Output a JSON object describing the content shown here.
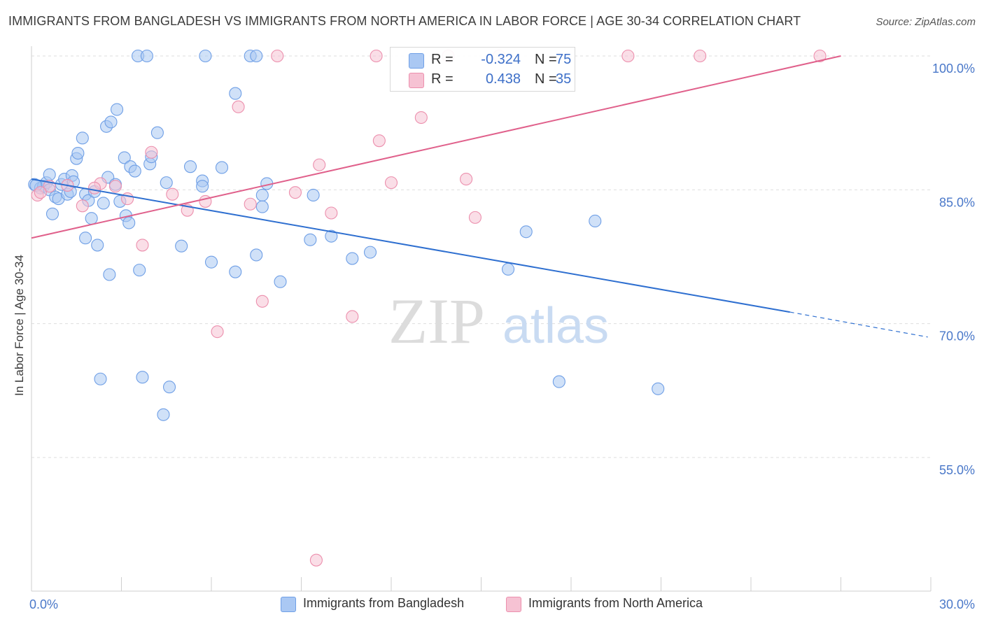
{
  "title": "IMMIGRANTS FROM BANGLADESH VS IMMIGRANTS FROM NORTH AMERICA IN LABOR FORCE | AGE 30-34 CORRELATION CHART",
  "source": "Source: ZipAtlas.com",
  "watermark": {
    "zip": "ZIP",
    "atlas": "atlas"
  },
  "chart_data": {
    "type": "scatter",
    "title": "IMMIGRANTS FROM BANGLADESH VS IMMIGRANTS FROM NORTH AMERICA IN LABOR FORCE | AGE 30-34 CORRELATION CHART",
    "xlabel": "",
    "ylabel": "In Labor Force | Age 30-34",
    "xlim": [
      0,
      30
    ],
    "ylim": [
      40,
      104
    ],
    "x_tick_labels": [
      {
        "value": 0,
        "label": "0.0%"
      },
      {
        "value": 30,
        "label": "30.0%"
      }
    ],
    "y_tick_labels": [
      {
        "value": 100,
        "label": "100.0%"
      },
      {
        "value": 85,
        "label": "85.0%"
      },
      {
        "value": 70,
        "label": "70.0%"
      },
      {
        "value": 55,
        "label": "55.0%"
      }
    ],
    "series": [
      {
        "name": "Immigrants from Bangladesh",
        "color": "#6f9fe6",
        "fill": "#aac8f3",
        "line_color": "#2e6fd0",
        "R": "-0.324",
        "N": "75",
        "trend": {
          "x0": 0,
          "y0": 86.2,
          "x1": 25.3,
          "y1": 71.3,
          "x_dash_end": 29.9,
          "y_dash_end": 68.5
        },
        "points": [
          [
            0.1,
            85.6
          ],
          [
            0.3,
            85.2
          ],
          [
            0.4,
            85.4
          ],
          [
            0.5,
            85.8
          ],
          [
            0.6,
            86.7
          ],
          [
            0.6,
            85.0
          ],
          [
            0.7,
            82.3
          ],
          [
            0.8,
            84.2
          ],
          [
            0.9,
            84.0
          ],
          [
            1.0,
            85.6
          ],
          [
            1.1,
            86.2
          ],
          [
            1.2,
            84.5
          ],
          [
            1.3,
            84.8
          ],
          [
            1.35,
            86.6
          ],
          [
            1.4,
            85.9
          ],
          [
            1.5,
            88.5
          ],
          [
            1.55,
            89.1
          ],
          [
            1.7,
            90.8
          ],
          [
            1.8,
            84.5
          ],
          [
            1.8,
            79.6
          ],
          [
            1.9,
            83.8
          ],
          [
            2.0,
            81.8
          ],
          [
            2.1,
            84.8
          ],
          [
            2.2,
            78.8
          ],
          [
            2.3,
            63.8
          ],
          [
            2.4,
            83.5
          ],
          [
            2.5,
            92.1
          ],
          [
            2.55,
            86.4
          ],
          [
            2.6,
            75.5
          ],
          [
            2.65,
            92.6
          ],
          [
            2.8,
            85.6
          ],
          [
            2.85,
            94.0
          ],
          [
            2.95,
            83.7
          ],
          [
            3.1,
            88.6
          ],
          [
            3.15,
            82.1
          ],
          [
            3.25,
            81.3
          ],
          [
            3.3,
            87.6
          ],
          [
            3.45,
            87.1
          ],
          [
            3.55,
            100.0
          ],
          [
            3.6,
            76.0
          ],
          [
            3.7,
            64.0
          ],
          [
            3.85,
            100.0
          ],
          [
            3.95,
            87.9
          ],
          [
            4.0,
            88.7
          ],
          [
            4.2,
            91.4
          ],
          [
            4.4,
            59.8
          ],
          [
            4.5,
            85.8
          ],
          [
            4.6,
            62.9
          ],
          [
            5.0,
            78.7
          ],
          [
            5.3,
            87.6
          ],
          [
            5.7,
            86.0
          ],
          [
            5.7,
            85.4
          ],
          [
            5.8,
            100.0
          ],
          [
            6.0,
            76.9
          ],
          [
            6.35,
            87.5
          ],
          [
            6.8,
            75.8
          ],
          [
            6.8,
            95.8
          ],
          [
            7.3,
            100.0
          ],
          [
            7.5,
            100.0
          ],
          [
            7.5,
            77.7
          ],
          [
            7.7,
            84.4
          ],
          [
            7.7,
            83.1
          ],
          [
            7.85,
            85.7
          ],
          [
            8.3,
            74.7
          ],
          [
            9.3,
            79.4
          ],
          [
            9.4,
            84.4
          ],
          [
            10.0,
            79.8
          ],
          [
            10.7,
            77.3
          ],
          [
            11.3,
            78.0
          ],
          [
            15.9,
            76.1
          ],
          [
            16.5,
            80.3
          ],
          [
            17.6,
            63.5
          ],
          [
            18.8,
            81.5
          ],
          [
            20.9,
            62.7
          ],
          [
            0.15,
            85.5
          ]
        ]
      },
      {
        "name": "Immigrants from North America",
        "color": "#ec8fad",
        "fill": "#f6c2d3",
        "line_color": "#e0608b",
        "R": "0.438",
        "N": "35",
        "trend": {
          "x0": 0,
          "y0": 79.6,
          "x1": 27.0,
          "y1": 100.0
        },
        "points": [
          [
            0.2,
            84.4
          ],
          [
            0.6,
            85.4
          ],
          [
            1.2,
            85.5
          ],
          [
            1.7,
            83.2
          ],
          [
            2.3,
            85.7
          ],
          [
            2.8,
            85.4
          ],
          [
            3.2,
            84.0
          ],
          [
            3.7,
            78.8
          ],
          [
            4.0,
            89.2
          ],
          [
            4.7,
            84.5
          ],
          [
            5.2,
            82.7
          ],
          [
            5.8,
            83.7
          ],
          [
            6.2,
            69.1
          ],
          [
            6.9,
            94.3
          ],
          [
            7.3,
            83.4
          ],
          [
            7.7,
            72.5
          ],
          [
            8.2,
            100.0
          ],
          [
            8.8,
            84.7
          ],
          [
            9.5,
            43.5
          ],
          [
            9.6,
            87.8
          ],
          [
            10.0,
            82.4
          ],
          [
            10.7,
            70.8
          ],
          [
            11.5,
            100.0
          ],
          [
            11.6,
            90.5
          ],
          [
            12.0,
            85.8
          ],
          [
            13.0,
            93.1
          ],
          [
            13.9,
            100.0
          ],
          [
            14.5,
            86.2
          ],
          [
            14.8,
            81.9
          ],
          [
            15.6,
            100.0
          ],
          [
            19.9,
            100.0
          ],
          [
            22.3,
            100.0
          ],
          [
            26.3,
            100.0
          ],
          [
            0.3,
            84.7
          ],
          [
            2.1,
            85.2
          ]
        ]
      }
    ],
    "legend": {
      "r_label": "R =",
      "n_label": "N =",
      "placement": "top-center",
      "bottom": [
        "Immigrants from Bangladesh",
        "Immigrants from North America"
      ]
    }
  }
}
